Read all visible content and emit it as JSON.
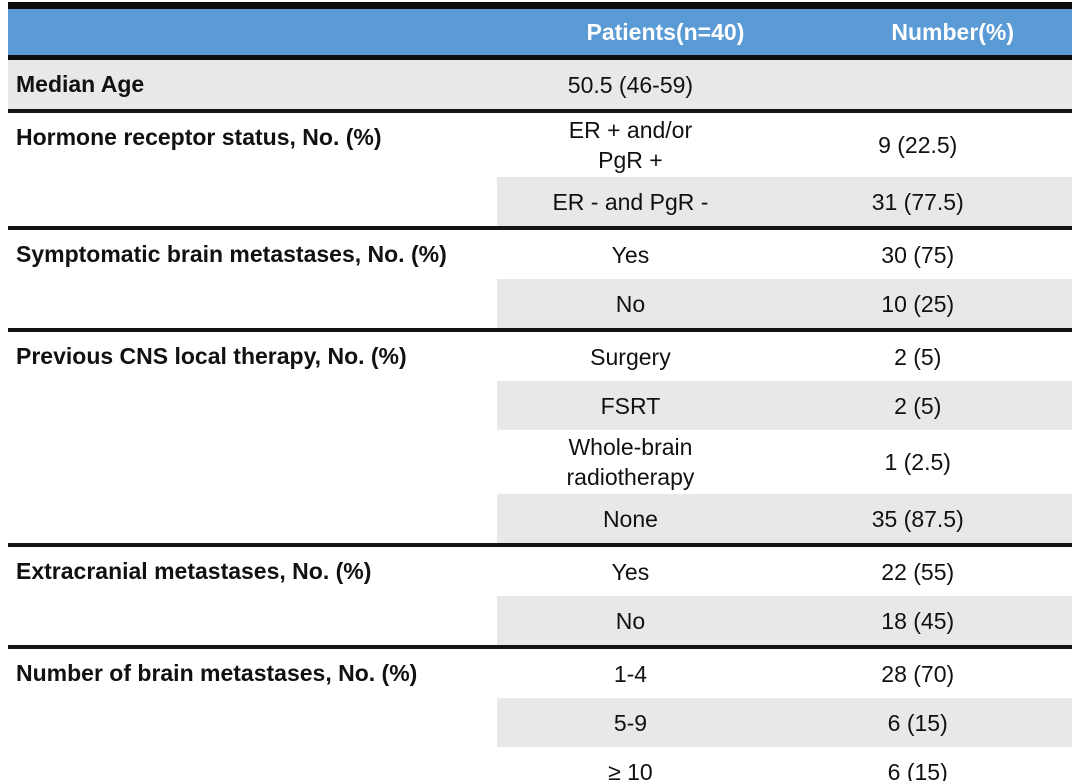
{
  "table": {
    "title_semantic": "Patient baseline characteristics",
    "colors": {
      "header_bg": "#5B9BD5",
      "header_text": "#FFFFFF",
      "shaded_row_bg": "#E9E8E8",
      "rule_color": "#0D0D0D"
    },
    "header": {
      "col1": "",
      "patients": "Patients(n=40)",
      "number": "Number(%)"
    },
    "groups": [
      {
        "label": "Median Age",
        "rows": [
          {
            "value": "50.5 (46-59)",
            "number": ""
          }
        ]
      },
      {
        "label": "Hormone receptor status, No. (%)",
        "rows": [
          {
            "value": "ER + and/or\nPgR +",
            "number": "9 (22.5)"
          },
          {
            "value": "ER - and PgR -",
            "number": "31 (77.5)"
          }
        ]
      },
      {
        "label": "Symptomatic brain metastases, No. (%)",
        "rows": [
          {
            "value": "Yes",
            "number": "30 (75)"
          },
          {
            "value": "No",
            "number": "10 (25)"
          }
        ]
      },
      {
        "label": "Previous CNS local therapy, No. (%)",
        "rows": [
          {
            "value": "Surgery",
            "number": "2 (5)"
          },
          {
            "value": "FSRT",
            "number": "2 (5)"
          },
          {
            "value": "Whole-brain\nradiotherapy",
            "number": "1 (2.5)"
          },
          {
            "value": "None",
            "number": "35 (87.5)"
          }
        ]
      },
      {
        "label": "Extracranial metastases, No. (%)",
        "rows": [
          {
            "value": "Yes",
            "number": "22 (55)"
          },
          {
            "value": "No",
            "number": "18 (45)"
          }
        ]
      },
      {
        "label": "Number of brain metastases, No. (%)",
        "rows": [
          {
            "value": "1-4",
            "number": "28 (70)"
          },
          {
            "value": "5-9",
            "number": "6 (15)"
          },
          {
            "value": "≥ 10",
            "number": "6 (15)"
          }
        ]
      }
    ]
  }
}
